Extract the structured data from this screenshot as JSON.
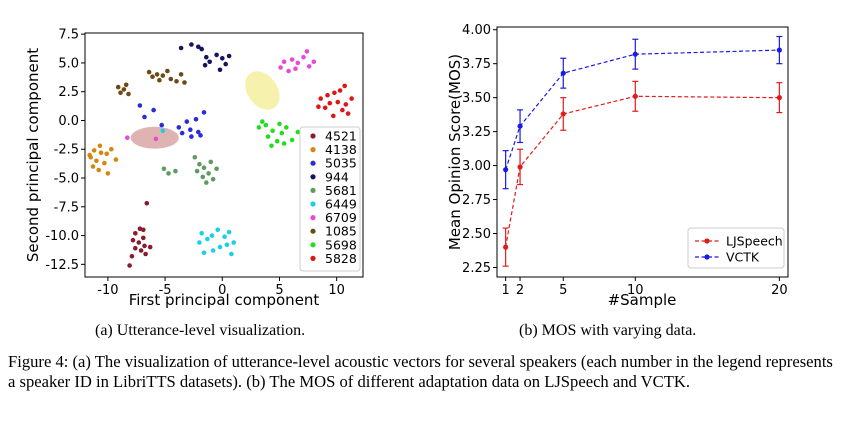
{
  "chart_data": [
    {
      "type": "scatter",
      "xlabel": "First principal component",
      "ylabel": "Second principal component",
      "xlim": [
        -12,
        12.3
      ],
      "ylim": [
        -13.6,
        7.6
      ],
      "xticks": [
        -10,
        -5,
        0,
        5,
        10
      ],
      "yticks": [
        7.5,
        5.0,
        2.5,
        0.0,
        -2.5,
        -5.0,
        -7.5,
        -10.0,
        -12.5
      ],
      "legend_position": "lower-right",
      "series": [
        {
          "name": "4521",
          "color": "#8b1a2b",
          "points": [
            [
              -7.6,
              -9.8
            ],
            [
              -7.2,
              -9.4
            ],
            [
              -6.9,
              -9.5
            ],
            [
              -7.8,
              -10.4
            ],
            [
              -7.3,
              -10.6
            ],
            [
              -6.8,
              -10.9
            ],
            [
              -7.6,
              -11.1
            ],
            [
              -7.1,
              -11.3
            ],
            [
              -6.7,
              -11.6
            ],
            [
              -7.9,
              -11.8
            ],
            [
              -8.1,
              -12.6
            ],
            [
              -6.3,
              -11.0
            ],
            [
              -6.6,
              -7.2
            ],
            [
              -6.9,
              -10.2
            ]
          ]
        },
        {
          "name": "4138",
          "color": "#d4870f",
          "points": [
            [
              -11.2,
              -2.6
            ],
            [
              -11.6,
              -3.0
            ],
            [
              -10.6,
              -2.8
            ],
            [
              -10.1,
              -2.9
            ],
            [
              -9.7,
              -2.5
            ],
            [
              -11.0,
              -3.5
            ],
            [
              -10.3,
              -3.7
            ],
            [
              -11.3,
              -4.0
            ],
            [
              -10.8,
              -4.3
            ],
            [
              -10.0,
              -4.6
            ],
            [
              -9.3,
              -3.4
            ],
            [
              -11.5,
              -3.2
            ],
            [
              -10.7,
              -2.2
            ]
          ]
        },
        {
          "name": "5035",
          "color": "#2b2bd8",
          "points": [
            [
              -7.2,
              1.3
            ],
            [
              -6.8,
              0.3
            ],
            [
              -6.0,
              0.9
            ],
            [
              -5.3,
              -0.4
            ],
            [
              -3.8,
              -0.6
            ],
            [
              -3.5,
              -1.1
            ],
            [
              -3.1,
              -0.1
            ],
            [
              -2.7,
              -1.4
            ],
            [
              -2.1,
              -1.0
            ],
            [
              -2.3,
              0.1
            ],
            [
              -1.6,
              0.7
            ],
            [
              -1.9,
              -1.3
            ],
            [
              -2.8,
              -0.8
            ]
          ]
        },
        {
          "name": "944",
          "color": "#14145f",
          "points": [
            [
              -3.6,
              6.3
            ],
            [
              -2.7,
              6.6
            ],
            [
              -2.1,
              6.4
            ],
            [
              -1.8,
              6.2
            ],
            [
              -1.4,
              5.5
            ],
            [
              -1.1,
              5.1
            ],
            [
              -0.5,
              5.7
            ],
            [
              0.0,
              5.4
            ],
            [
              0.3,
              4.9
            ],
            [
              0.6,
              5.6
            ],
            [
              -0.2,
              4.4
            ],
            [
              -1.5,
              4.8
            ]
          ]
        },
        {
          "name": "5681",
          "color": "#5e9b5e",
          "points": [
            [
              -5.1,
              -4.2
            ],
            [
              -4.7,
              -4.6
            ],
            [
              -4.1,
              -4.4
            ],
            [
              -2.4,
              -3.2
            ],
            [
              -2.0,
              -3.8
            ],
            [
              -1.6,
              -4.1
            ],
            [
              -1.2,
              -4.6
            ],
            [
              -0.8,
              -5.1
            ],
            [
              -1.4,
              -5.4
            ],
            [
              -1.7,
              -4.9
            ],
            [
              -2.2,
              -4.4
            ],
            [
              -0.5,
              -4.2
            ],
            [
              -1.0,
              -3.6
            ]
          ]
        },
        {
          "name": "6449",
          "color": "#1ccfe6",
          "points": [
            [
              -1.8,
              -9.8
            ],
            [
              -1.3,
              -10.3
            ],
            [
              -0.9,
              -10.0
            ],
            [
              -0.4,
              -9.5
            ],
            [
              0.2,
              -10.1
            ],
            [
              0.6,
              -9.7
            ],
            [
              1.0,
              -10.6
            ],
            [
              0.4,
              -10.8
            ],
            [
              -0.2,
              -11.0
            ],
            [
              -0.8,
              -11.3
            ],
            [
              -1.6,
              -11.5
            ],
            [
              -2.0,
              -10.6
            ],
            [
              0.8,
              -11.6
            ],
            [
              -5.2,
              -0.9
            ]
          ]
        },
        {
          "name": "6709",
          "color": "#e84ad8",
          "points": [
            [
              5.4,
              5.1
            ],
            [
              6.1,
              5.3
            ],
            [
              6.6,
              5.0
            ],
            [
              7.1,
              5.5
            ],
            [
              7.4,
              6.0
            ],
            [
              7.6,
              4.7
            ],
            [
              6.4,
              4.5
            ],
            [
              5.8,
              4.3
            ],
            [
              8.0,
              5.1
            ],
            [
              5.1,
              4.6
            ],
            [
              -5.8,
              -1.6
            ],
            [
              -8.3,
              -1.5
            ]
          ]
        },
        {
          "name": "1085",
          "color": "#6b4a14",
          "points": [
            [
              -9.1,
              2.9
            ],
            [
              -8.6,
              2.7
            ],
            [
              -8.9,
              2.4
            ],
            [
              -8.2,
              2.3
            ],
            [
              -6.4,
              4.2
            ],
            [
              -5.7,
              4.0
            ],
            [
              -5.2,
              3.9
            ],
            [
              -4.8,
              4.3
            ],
            [
              -4.5,
              3.6
            ],
            [
              -5.5,
              3.5
            ],
            [
              -4.0,
              3.4
            ],
            [
              -3.3,
              3.3
            ],
            [
              -3.6,
              4.0
            ],
            [
              -6.1,
              3.8
            ],
            [
              -8.4,
              3.1
            ]
          ]
        },
        {
          "name": "5698",
          "color": "#22dd22",
          "points": [
            [
              3.2,
              -0.6
            ],
            [
              3.8,
              -0.4
            ],
            [
              4.4,
              -0.9
            ],
            [
              5.0,
              -0.3
            ],
            [
              5.6,
              -0.6
            ],
            [
              4.0,
              -1.4
            ],
            [
              4.8,
              -1.8
            ],
            [
              5.4,
              -2.0
            ],
            [
              6.1,
              -1.7
            ],
            [
              6.6,
              -1.0
            ],
            [
              4.3,
              -2.2
            ],
            [
              5.2,
              -1.1
            ],
            [
              3.5,
              -0.1
            ]
          ]
        },
        {
          "name": "5828",
          "color": "#e01515",
          "points": [
            [
              8.6,
              1.9
            ],
            [
              9.2,
              2.2
            ],
            [
              9.8,
              2.4
            ],
            [
              10.3,
              2.6
            ],
            [
              10.7,
              3.0
            ],
            [
              9.4,
              1.5
            ],
            [
              10.1,
              1.6
            ],
            [
              10.8,
              1.4
            ],
            [
              11.3,
              1.9
            ],
            [
              9.0,
              1.1
            ],
            [
              10.5,
              0.9
            ],
            [
              11.0,
              0.6
            ],
            [
              9.7,
              0.4
            ],
            [
              8.4,
              1.2
            ]
          ]
        }
      ]
    },
    {
      "type": "line",
      "xlabel": "#Sample",
      "ylabel": "Mean Opinion Score(MOS)",
      "x": [
        1,
        2,
        5,
        10,
        20
      ],
      "xlim": [
        0.4,
        20.6
      ],
      "ylim": [
        2.18,
        4.02
      ],
      "yticks": [
        "4.00",
        "3.75",
        "3.50",
        "3.25",
        "3.00",
        "2.75",
        "2.50",
        "2.25"
      ],
      "legend_position": "lower-right",
      "series": [
        {
          "name": "LJSpeech",
          "color": "#e31a1c",
          "values": [
            2.4,
            2.99,
            3.38,
            3.51,
            3.5
          ],
          "errors": [
            0.14,
            0.13,
            0.12,
            0.11,
            0.11
          ]
        },
        {
          "name": "VCTK",
          "color": "#1a1ae3",
          "values": [
            2.97,
            3.29,
            3.68,
            3.82,
            3.85
          ],
          "errors": [
            0.14,
            0.12,
            0.11,
            0.11,
            0.1
          ]
        }
      ]
    }
  ],
  "captions": {
    "a": "(a) Utterance-level visualization.",
    "b": "(b) MOS with varying data.",
    "figure": "Figure 4: (a) The visualization of utterance-level acoustic vectors for several speakers (each number in the legend represents a speaker ID in LibriTTS datasets). (b) The MOS of different adaptation data on LJSpeech and VCTK."
  }
}
